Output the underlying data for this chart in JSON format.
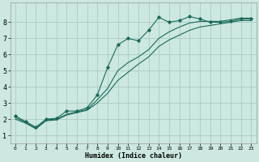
{
  "xlabel": "Humidex (Indice chaleur)",
  "ylabel": "",
  "background_color": "#cce8e0",
  "grid_color": "#aaccC4",
  "line_color": "#1a6b5a",
  "xlim": [
    -0.5,
    23.5
  ],
  "ylim": [
    0.5,
    9.2
  ],
  "xticks": [
    0,
    1,
    2,
    3,
    4,
    5,
    6,
    7,
    8,
    9,
    10,
    11,
    12,
    13,
    14,
    15,
    16,
    17,
    18,
    19,
    20,
    21,
    22,
    23
  ],
  "yticks": [
    1,
    2,
    3,
    4,
    5,
    6,
    7,
    8
  ],
  "series": [
    {
      "x": [
        0,
        1,
        2,
        3,
        4,
        5,
        6,
        7,
        8,
        9,
        10,
        11,
        12,
        13,
        14,
        15,
        16,
        17,
        18,
        19,
        20,
        21,
        22,
        23
      ],
      "y": [
        2.2,
        1.85,
        1.5,
        2.0,
        2.05,
        2.5,
        2.5,
        2.7,
        3.5,
        5.2,
        6.6,
        7.0,
        6.85,
        7.5,
        8.3,
        8.0,
        8.1,
        8.35,
        8.2,
        8.0,
        8.0,
        8.05,
        8.2,
        8.2
      ],
      "marker": true
    },
    {
      "x": [
        0,
        1,
        2,
        3,
        4,
        5,
        6,
        7,
        8,
        9,
        10,
        11,
        12,
        13,
        14,
        15,
        16,
        17,
        18,
        19,
        20,
        21,
        22,
        23
      ],
      "y": [
        2.1,
        1.8,
        1.45,
        1.95,
        2.0,
        2.3,
        2.45,
        2.6,
        3.2,
        3.9,
        5.0,
        5.5,
        5.85,
        6.3,
        7.0,
        7.4,
        7.7,
        7.95,
        8.05,
        8.05,
        8.05,
        8.15,
        8.25,
        8.25
      ],
      "marker": false
    },
    {
      "x": [
        0,
        1,
        2,
        3,
        4,
        5,
        6,
        7,
        8,
        9,
        10,
        11,
        12,
        13,
        14,
        15,
        16,
        17,
        18,
        19,
        20,
        21,
        22,
        23
      ],
      "y": [
        2.0,
        1.75,
        1.4,
        1.9,
        1.95,
        2.25,
        2.4,
        2.55,
        3.0,
        3.6,
        4.4,
        4.9,
        5.4,
        5.85,
        6.5,
        6.9,
        7.2,
        7.5,
        7.7,
        7.8,
        7.9,
        8.0,
        8.1,
        8.1
      ],
      "marker": false
    }
  ]
}
